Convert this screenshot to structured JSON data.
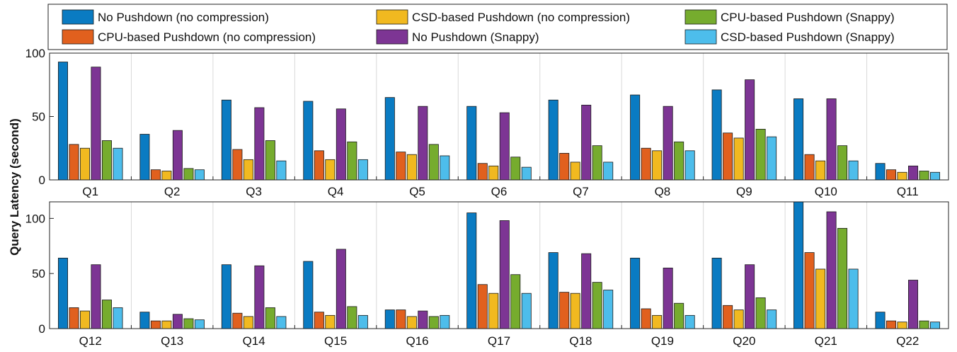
{
  "colors": {
    "no_pushdown_nc": "#0A7BC2",
    "cpu_pushdown_nc": "#E1601E",
    "csd_pushdown_nc": "#F1B920",
    "no_pushdown_snappy": "#7D3594",
    "cpu_pushdown_snappy": "#76AC2E",
    "csd_pushdown_snappy": "#4DBDEB"
  },
  "chart_data": {
    "type": "bar",
    "ylabel": "Query Latency (second)",
    "legend": {
      "placement": "top",
      "entries": [
        {
          "label": "No Pushdown (no compression)",
          "color": "#0A7BC2"
        },
        {
          "label": "CSD-based Pushdown (no compression)",
          "color": "#F1B920"
        },
        {
          "label": "CPU-based Pushdown (Snappy)",
          "color": "#76AC2E"
        },
        {
          "label": "CPU-based Pushdown (no compression)",
          "color": "#E1601E"
        },
        {
          "label": "No Pushdown (Snappy)",
          "color": "#7D3594"
        },
        {
          "label": "CSD-based Pushdown (Snappy)",
          "color": "#4DBDEB"
        }
      ]
    },
    "series_order": [
      "No Pushdown (no compression)",
      "CPU-based Pushdown (no compression)",
      "CSD-based Pushdown (no compression)",
      "No Pushdown (Snappy)",
      "CPU-based Pushdown (Snappy)",
      "CSD-based Pushdown (Snappy)"
    ],
    "series_colors": [
      "#0A7BC2",
      "#E1601E",
      "#F1B920",
      "#7D3594",
      "#76AC2E",
      "#4DBDEB"
    ],
    "panels": [
      {
        "categories": [
          "Q1",
          "Q2",
          "Q3",
          "Q4",
          "Q5",
          "Q6",
          "Q7",
          "Q8",
          "Q9",
          "Q10",
          "Q11"
        ],
        "ylim": [
          0,
          100
        ],
        "yticks": [
          0,
          50,
          100
        ],
        "values": [
          [
            93,
            28,
            25,
            89,
            31,
            25
          ],
          [
            36,
            8,
            7,
            39,
            9,
            8
          ],
          [
            63,
            24,
            16,
            57,
            31,
            15
          ],
          [
            62,
            23,
            16,
            56,
            30,
            16
          ],
          [
            65,
            22,
            20,
            58,
            28,
            19
          ],
          [
            58,
            13,
            11,
            53,
            18,
            10
          ],
          [
            63,
            21,
            14,
            59,
            27,
            14
          ],
          [
            67,
            25,
            23,
            58,
            30,
            23
          ],
          [
            71,
            37,
            33,
            79,
            40,
            34
          ],
          [
            64,
            20,
            15,
            64,
            27,
            15
          ],
          [
            13,
            8,
            6,
            11,
            7,
            6
          ]
        ]
      },
      {
        "categories": [
          "Q12",
          "Q13",
          "Q14",
          "Q15",
          "Q16",
          "Q17",
          "Q18",
          "Q19",
          "Q20",
          "Q21",
          "Q22"
        ],
        "ylim": [
          0,
          115
        ],
        "yticks": [
          0,
          50,
          100
        ],
        "values": [
          [
            64,
            19,
            16,
            58,
            26,
            19
          ],
          [
            15,
            7,
            7,
            13,
            9,
            8
          ],
          [
            58,
            14,
            11,
            57,
            19,
            11
          ],
          [
            61,
            15,
            12,
            72,
            20,
            12
          ],
          [
            17,
            17,
            11,
            16,
            11,
            12
          ],
          [
            105,
            40,
            32,
            98,
            49,
            32
          ],
          [
            69,
            33,
            32,
            68,
            42,
            35
          ],
          [
            64,
            18,
            12,
            55,
            23,
            12
          ],
          [
            64,
            21,
            17,
            58,
            28,
            17
          ],
          [
            122,
            69,
            54,
            106,
            91,
            54
          ],
          [
            15,
            7,
            6,
            44,
            7,
            6
          ]
        ]
      }
    ]
  }
}
